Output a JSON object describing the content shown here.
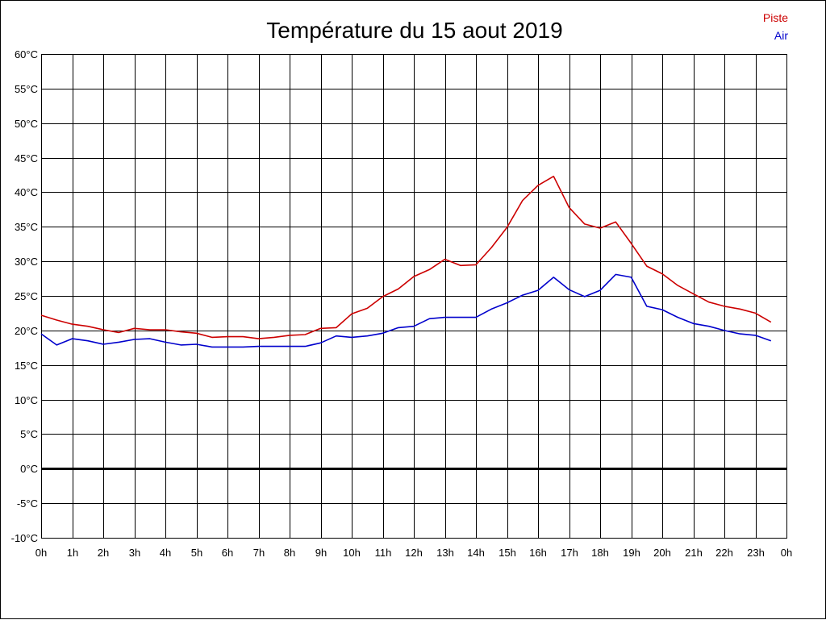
{
  "chart_data": {
    "type": "line",
    "title": "Température du 15 aout 2019",
    "ylim": [
      -10,
      60
    ],
    "y_ticks": [
      60,
      55,
      50,
      45,
      40,
      35,
      30,
      25,
      20,
      15,
      10,
      5,
      0,
      -5,
      -10
    ],
    "y_tick_labels": [
      "60°C",
      "55°C",
      "50°C",
      "45°C",
      "40°C",
      "35°C",
      "30°C",
      "25°C",
      "20°C",
      "15°C",
      "10°C",
      "5°C",
      "0°C",
      "-5°C",
      "-10°C"
    ],
    "x_tick_labels": [
      "0h",
      "1h",
      "2h",
      "3h",
      "4h",
      "5h",
      "6h",
      "7h",
      "8h",
      "9h",
      "10h",
      "11h",
      "12h",
      "13h",
      "14h",
      "15h",
      "16h",
      "17h",
      "18h",
      "19h",
      "20h",
      "21h",
      "22h",
      "23h",
      "0h"
    ],
    "xlim": [
      0,
      24
    ],
    "grid": true,
    "legend_position": "top-right",
    "colors": {
      "piste": "#cc0000",
      "air": "#0000cc",
      "zero_line": "#000000",
      "grid": "#000000"
    },
    "x": [
      0,
      0.5,
      1,
      1.5,
      2,
      2.5,
      3,
      3.5,
      4,
      4.5,
      5,
      5.5,
      6,
      6.5,
      7,
      7.5,
      8,
      8.5,
      9,
      9.5,
      10,
      10.5,
      11,
      11.5,
      12,
      12.5,
      13,
      13.5,
      14,
      14.5,
      15,
      15.5,
      16,
      16.5,
      17,
      17.5,
      18,
      18.5,
      19,
      19.5,
      20,
      20.5,
      21,
      21.5,
      22,
      22.5,
      23,
      23.5
    ],
    "series": [
      {
        "name": "Piste",
        "color": "#cc0000",
        "values": [
          22.2,
          21.5,
          20.9,
          20.6,
          20.1,
          19.7,
          20.3,
          20.1,
          20.1,
          19.8,
          19.6,
          19.0,
          19.1,
          19.1,
          18.8,
          19.0,
          19.3,
          19.4,
          20.3,
          20.4,
          22.4,
          23.2,
          24.9,
          26.0,
          27.8,
          28.8,
          30.3,
          29.4,
          29.5,
          32.0,
          34.9,
          38.8,
          41.0,
          42.3,
          37.8,
          35.4,
          34.8,
          35.7,
          32.6,
          29.3,
          28.2,
          26.5,
          25.3,
          24.1,
          23.5,
          23.1,
          22.5,
          21.2
        ]
      },
      {
        "name": "Air",
        "color": "#0000cc",
        "values": [
          19.5,
          17.9,
          18.8,
          18.5,
          18.0,
          18.3,
          18.7,
          18.8,
          18.3,
          17.9,
          18.0,
          17.6,
          17.6,
          17.6,
          17.7,
          17.7,
          17.7,
          17.7,
          18.2,
          19.2,
          19.0,
          19.2,
          19.6,
          20.4,
          20.6,
          21.7,
          21.9,
          21.9,
          21.9,
          23.1,
          24.0,
          25.1,
          25.8,
          27.7,
          25.9,
          24.9,
          25.8,
          28.1,
          27.7,
          23.5,
          23.0,
          21.9,
          21.0,
          20.6,
          20.0,
          19.5,
          19.3,
          18.5
        ]
      }
    ]
  }
}
